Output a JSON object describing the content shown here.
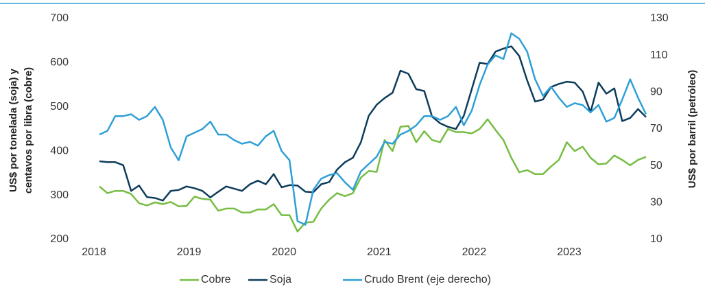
{
  "chart_data": {
    "type": "line",
    "ylabel": [
      "US$ por tonelada (soja) y",
      "centavos por libra (cobre)"
    ],
    "y2label": "US$ por barril (petróleo)",
    "categories": [
      "2018",
      null,
      null,
      null,
      null,
      null,
      null,
      null,
      null,
      null,
      null,
      null,
      "2019",
      null,
      null,
      null,
      null,
      null,
      null,
      null,
      null,
      null,
      null,
      null,
      "2020",
      null,
      null,
      null,
      null,
      null,
      null,
      null,
      null,
      null,
      null,
      null,
      "2021",
      null,
      null,
      null,
      null,
      null,
      null,
      null,
      null,
      null,
      null,
      null,
      "2022",
      null,
      null,
      null,
      null,
      null,
      null,
      null,
      null,
      null,
      null,
      null,
      "2023",
      null,
      null,
      null,
      null,
      null,
      null,
      null,
      null,
      null
    ],
    "series": [
      {
        "name": "Cobre",
        "color": "#76bd43",
        "values": [
          320,
          305,
          310,
          310,
          303,
          282,
          277,
          284,
          280,
          285,
          275,
          276,
          297,
          292,
          290,
          265,
          270,
          270,
          261,
          261,
          268,
          268,
          280,
          255,
          255,
          218,
          238,
          240,
          270,
          290,
          305,
          298,
          305,
          340,
          355,
          353,
          425,
          400,
          455,
          457,
          420,
          445,
          425,
          420,
          450,
          443,
          443,
          440,
          450,
          472,
          448,
          425,
          385,
          352,
          357,
          348,
          348,
          365,
          380,
          420,
          400,
          410,
          385,
          370,
          372,
          390,
          380,
          368,
          380,
          387
        ]
      },
      {
        "name": "Soja",
        "color": "#0d3c5a",
        "values": [
          377,
          375,
          375,
          368,
          310,
          322,
          296,
          294,
          288,
          310,
          312,
          320,
          316,
          310,
          295,
          308,
          320,
          315,
          310,
          325,
          333,
          325,
          348,
          318,
          323,
          322,
          308,
          307,
          325,
          330,
          358,
          375,
          385,
          420,
          480,
          505,
          520,
          532,
          582,
          575,
          540,
          536,
          478,
          463,
          455,
          450,
          480,
          540,
          600,
          597,
          625,
          632,
          637,
          615,
          560,
          512,
          517,
          545,
          552,
          557,
          555,
          535,
          488,
          555,
          530,
          542,
          468,
          475,
          495,
          477
        ]
      },
      {
        "name": "Crudo Brent (eje derecho)",
        "color": "#2e9fd6",
        "axis": "y2",
        "values": [
          67,
          69,
          77,
          77,
          78,
          75,
          77,
          82,
          75,
          60,
          53,
          66,
          68,
          70,
          74,
          67,
          67,
          64,
          62,
          63,
          61,
          66,
          69,
          58,
          53,
          20,
          18,
          37,
          43,
          45,
          46,
          41,
          37,
          47,
          51,
          55,
          63,
          62,
          67,
          69,
          72,
          77,
          77,
          75,
          77,
          82,
          72,
          80,
          94,
          105,
          110,
          108,
          122,
          119,
          112,
          97,
          88,
          93,
          87,
          82,
          84,
          83,
          79,
          83,
          74,
          76,
          86,
          97,
          87,
          78
        ]
      }
    ],
    "ylim": [
      200,
      700
    ],
    "yticks": [
      200,
      300,
      400,
      500,
      600,
      700
    ],
    "y2lim": [
      10,
      130
    ],
    "y2ticks": [
      10,
      30,
      50,
      70,
      90,
      110,
      130
    ],
    "legend": "bottom"
  }
}
